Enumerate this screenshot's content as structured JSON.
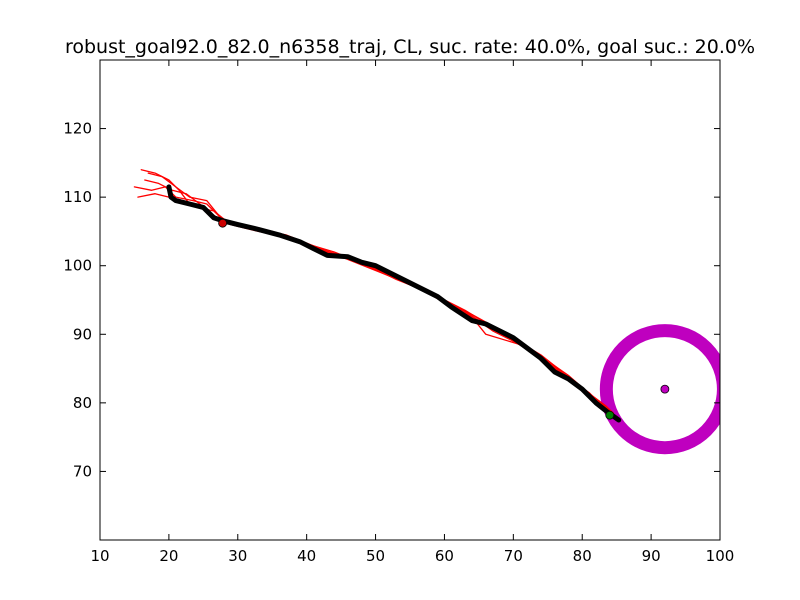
{
  "chart_data": {
    "type": "line",
    "title": "robust_goal92.0_82.0_n6358_traj, CL, suc. rate: 40.0%, goal suc.: 20.0%",
    "xlabel": "",
    "ylabel": "",
    "xlim": [
      10,
      100
    ],
    "ylim": [
      60,
      130
    ],
    "xticks": [
      10,
      20,
      30,
      40,
      50,
      60,
      70,
      80,
      90,
      100
    ],
    "yticks": [
      70,
      80,
      90,
      100,
      110,
      120
    ],
    "grid": false,
    "legend": "none",
    "colors": {
      "trajectories": "#ff0000",
      "mean_trajectory": "#000000",
      "goal_region": "#bf00bf",
      "goal_point": "#bf00bf",
      "end_point": "#008000",
      "start_point": "#cc0000"
    },
    "goal": {
      "center": [
        92.0,
        82.0
      ],
      "radius": 8.5
    },
    "series": [
      {
        "role": "trajectory",
        "x": [
          16.0,
          18.0,
          20.0,
          21.5,
          23.0,
          25.0,
          27.0,
          30.0,
          35.0,
          40.0,
          45.0,
          50.0,
          55.0,
          60.0,
          65.0,
          70.0,
          75.0,
          80.0,
          82.5,
          84.5
        ],
        "y": [
          114.0,
          113.5,
          112.5,
          111.0,
          109.0,
          108.5,
          107.0,
          106.0,
          105.0,
          103.0,
          101.5,
          99.5,
          97.5,
          95.0,
          92.0,
          89.0,
          86.0,
          82.0,
          80.0,
          78.5
        ]
      },
      {
        "role": "trajectory",
        "x": [
          15.0,
          17.5,
          19.5,
          21.0,
          23.5,
          25.5,
          28.0,
          31.0,
          36.0,
          41.0,
          46.0,
          51.0,
          56.0,
          61.0,
          64.0,
          66.0,
          71.0,
          76.0,
          81.0,
          83.0,
          84.0
        ],
        "y": [
          111.5,
          111.0,
          111.5,
          110.0,
          109.5,
          109.0,
          106.5,
          105.5,
          104.5,
          102.5,
          101.0,
          99.0,
          97.0,
          94.0,
          92.5,
          90.0,
          88.5,
          85.0,
          81.5,
          79.5,
          78.0
        ]
      },
      {
        "role": "trajectory",
        "x": [
          15.5,
          18.0,
          20.0,
          22.0,
          24.0,
          26.5,
          29.0,
          33.0,
          38.0,
          43.0,
          48.0,
          53.0,
          58.0,
          63.0,
          67.0,
          72.0,
          77.0,
          81.5,
          83.5,
          84.5
        ],
        "y": [
          110.0,
          110.5,
          110.0,
          109.5,
          108.5,
          108.0,
          106.0,
          105.0,
          104.0,
          102.0,
          100.5,
          98.0,
          96.0,
          93.5,
          91.0,
          88.0,
          84.5,
          81.0,
          79.5,
          78.5
        ]
      },
      {
        "role": "trajectory",
        "x": [
          16.5,
          18.5,
          20.5,
          22.5,
          24.5,
          26.0,
          28.5,
          32.0,
          37.0,
          42.0,
          47.0,
          52.0,
          57.0,
          62.0,
          66.5,
          69.0,
          74.0,
          79.0,
          82.0,
          84.0
        ],
        "y": [
          112.5,
          112.0,
          111.0,
          110.5,
          109.0,
          107.5,
          106.5,
          105.5,
          104.5,
          102.5,
          100.5,
          98.5,
          96.5,
          94.0,
          91.5,
          90.0,
          87.0,
          83.0,
          80.5,
          78.0
        ]
      },
      {
        "role": "trajectory",
        "x": [
          17.0,
          19.0,
          21.0,
          23.0,
          25.5,
          27.5,
          30.0,
          34.0,
          39.0,
          44.0,
          49.0,
          54.0,
          59.0,
          63.5,
          67.0,
          73.0,
          78.0,
          82.0,
          84.5
        ],
        "y": [
          113.5,
          113.0,
          111.5,
          110.0,
          109.5,
          107.0,
          106.0,
          105.0,
          103.5,
          102.0,
          100.0,
          98.0,
          95.5,
          93.0,
          90.5,
          87.5,
          84.0,
          80.5,
          78.5
        ]
      },
      {
        "role": "mean",
        "x": [
          20.0,
          20.3,
          21.0,
          23.0,
          25.0,
          26.5,
          28.0,
          30.0,
          33.0,
          36.0,
          39.0,
          41.0,
          43.0,
          46.0,
          48.0,
          50.0,
          53.0,
          55.0,
          57.0,
          59.0,
          61.0,
          64.0,
          66.0,
          68.0,
          70.0,
          72.0,
          74.0,
          76.0,
          78.0,
          80.0,
          82.0,
          83.5,
          85.3
        ],
        "y": [
          111.5,
          110.0,
          109.5,
          109.0,
          108.5,
          107.0,
          106.5,
          106.0,
          105.3,
          104.5,
          103.5,
          102.5,
          101.5,
          101.3,
          100.5,
          100.0,
          98.5,
          97.5,
          96.5,
          95.5,
          94.0,
          92.0,
          91.5,
          90.5,
          89.5,
          88.0,
          86.5,
          84.5,
          83.5,
          82.0,
          80.0,
          78.8,
          77.5
        ]
      }
    ],
    "markers": [
      {
        "role": "goal_point",
        "x": 92.0,
        "y": 82.0
      },
      {
        "role": "start_point",
        "x": 27.8,
        "y": 106.2
      },
      {
        "role": "end_point",
        "x": 84.0,
        "y": 78.2
      }
    ]
  }
}
